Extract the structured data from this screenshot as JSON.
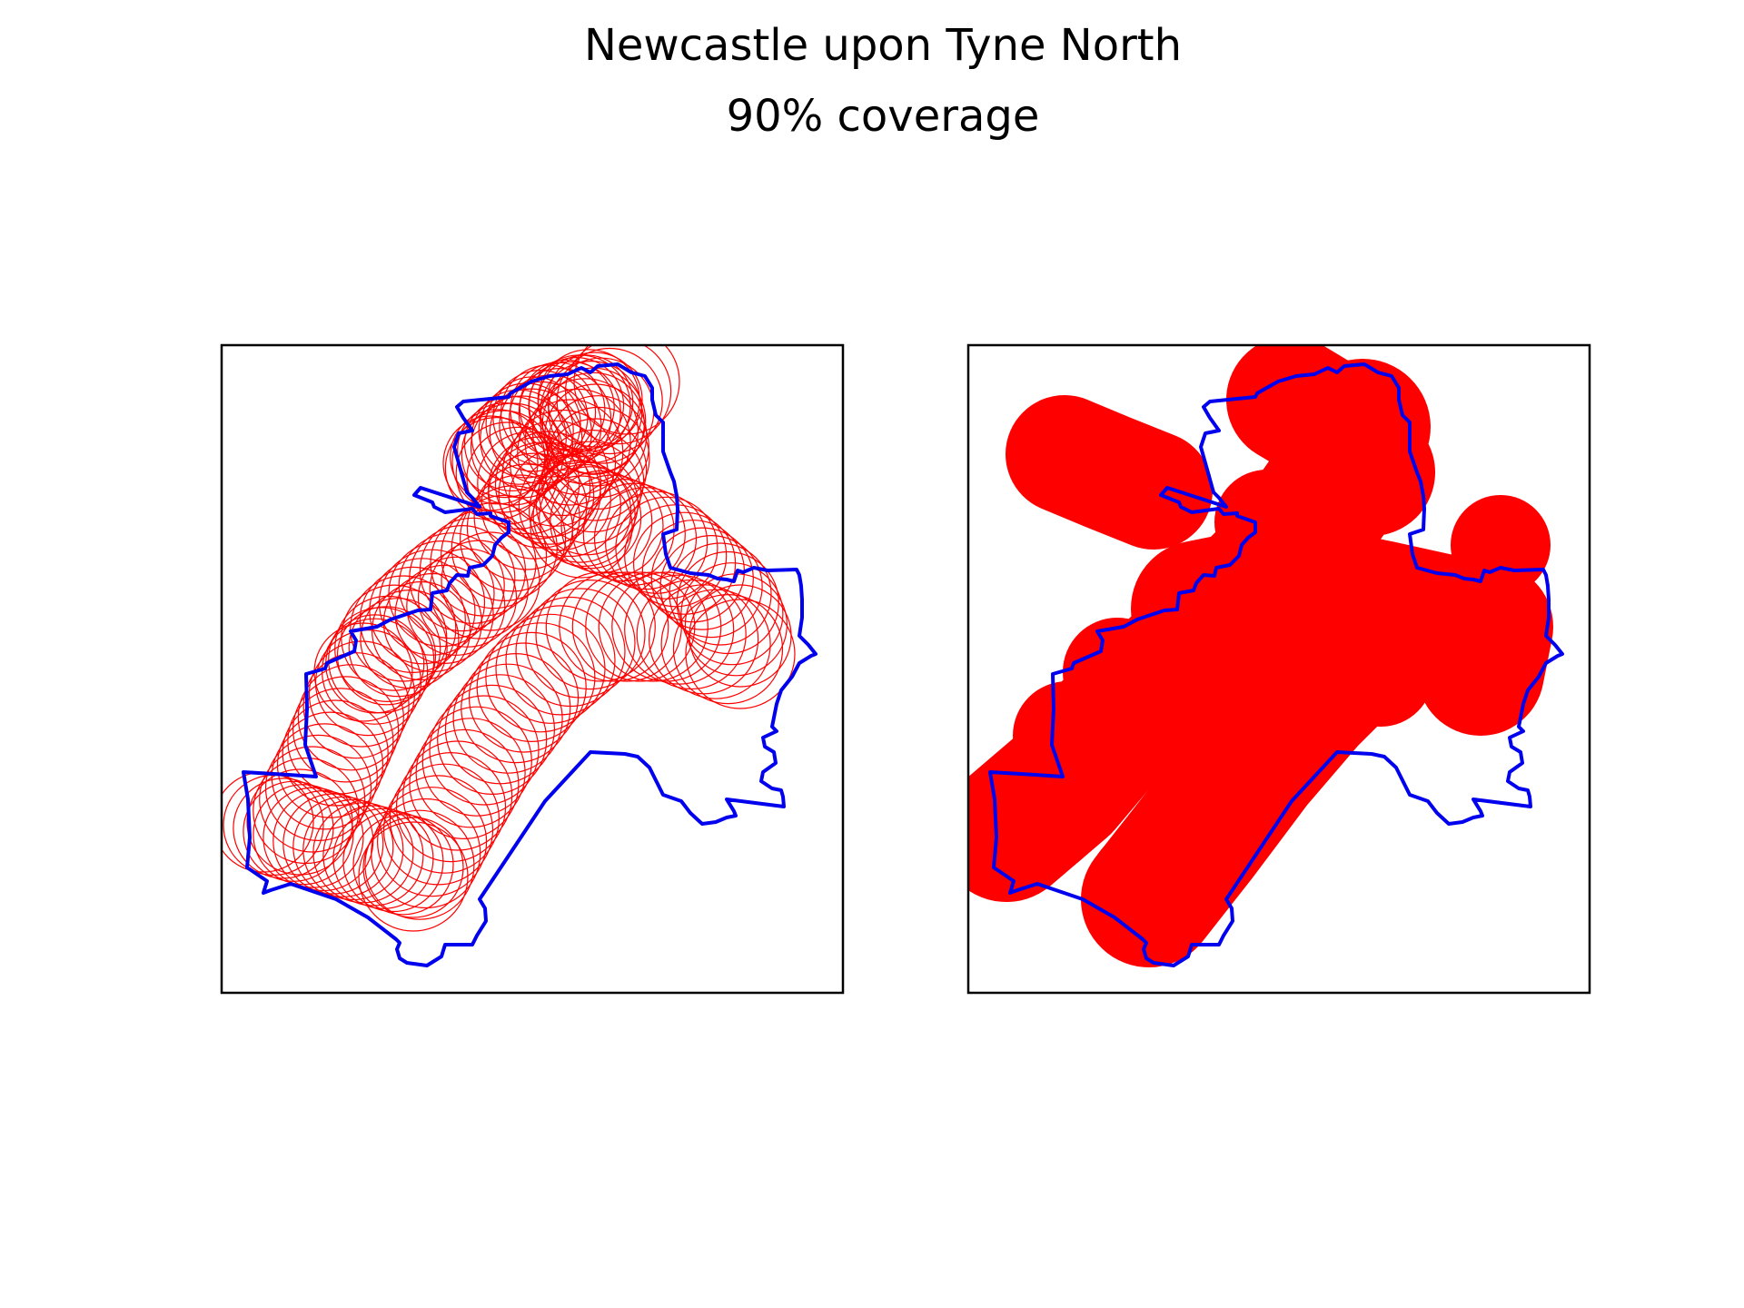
{
  "figure": {
    "title": "Newcastle upon Tyne North",
    "subtitle": "90% coverage"
  },
  "colors": {
    "boundary": "#0000ee",
    "coverage": "#ff0000",
    "axes_frame": "#000000"
  },
  "panels": [
    {
      "name": "circle-outlines",
      "style": "outline"
    },
    {
      "name": "circle-union",
      "style": "filled"
    }
  ]
}
